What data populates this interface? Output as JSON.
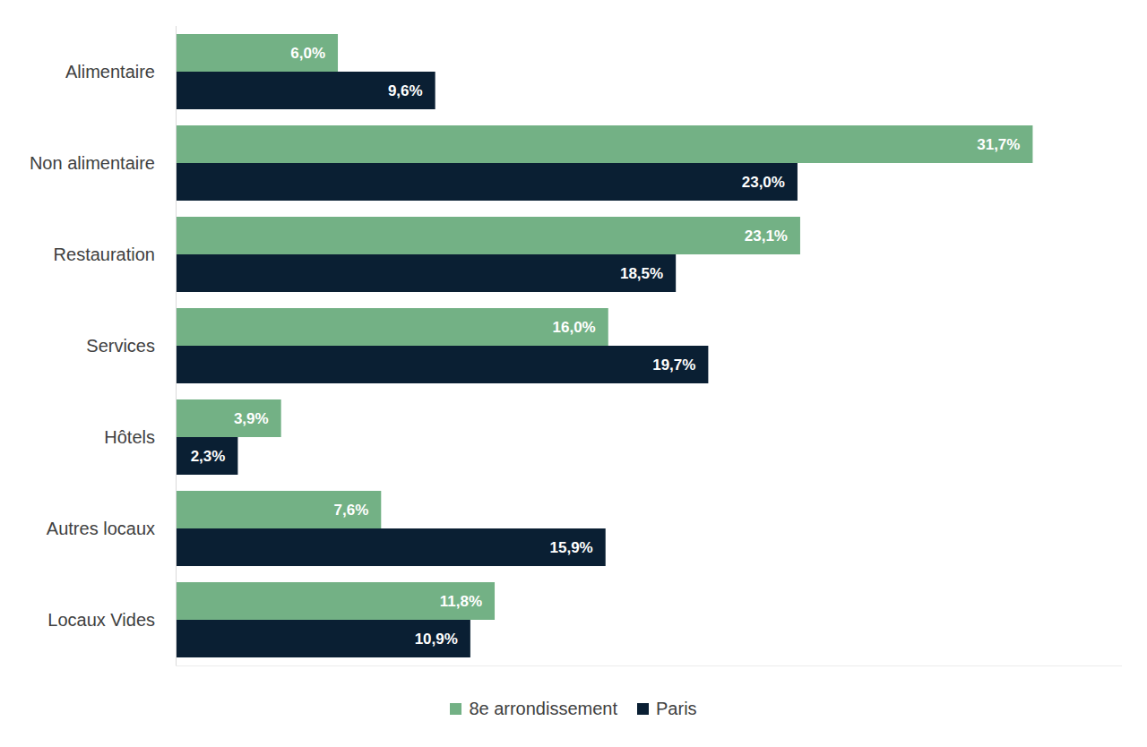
{
  "chart_data": {
    "type": "bar",
    "orientation": "horizontal",
    "categories": [
      "Alimentaire",
      "Non alimentaire",
      "Restauration",
      "Services",
      "Hôtels",
      "Autres locaux",
      "Locaux Vides"
    ],
    "series": [
      {
        "name": "8e arrondissement",
        "color": "#73b185",
        "values": [
          6.0,
          31.7,
          23.1,
          16.0,
          3.9,
          7.6,
          11.8
        ],
        "value_labels": [
          "6,0%",
          "31,7%",
          "23,1%",
          "16,0%",
          "3,9%",
          "7,6%",
          "11,8%"
        ]
      },
      {
        "name": "Paris",
        "color": "#0a1f33",
        "values": [
          9.6,
          23.0,
          18.5,
          19.7,
          2.3,
          15.9,
          10.9
        ],
        "value_labels": [
          "9,6%",
          "23,0%",
          "18,5%",
          "19,7%",
          "2,3%",
          "15,9%",
          "10,9%"
        ]
      }
    ],
    "xlim": [
      0,
      35
    ],
    "grid": false,
    "data_labels": true,
    "tick_labels": "y",
    "legend": "bottom"
  }
}
